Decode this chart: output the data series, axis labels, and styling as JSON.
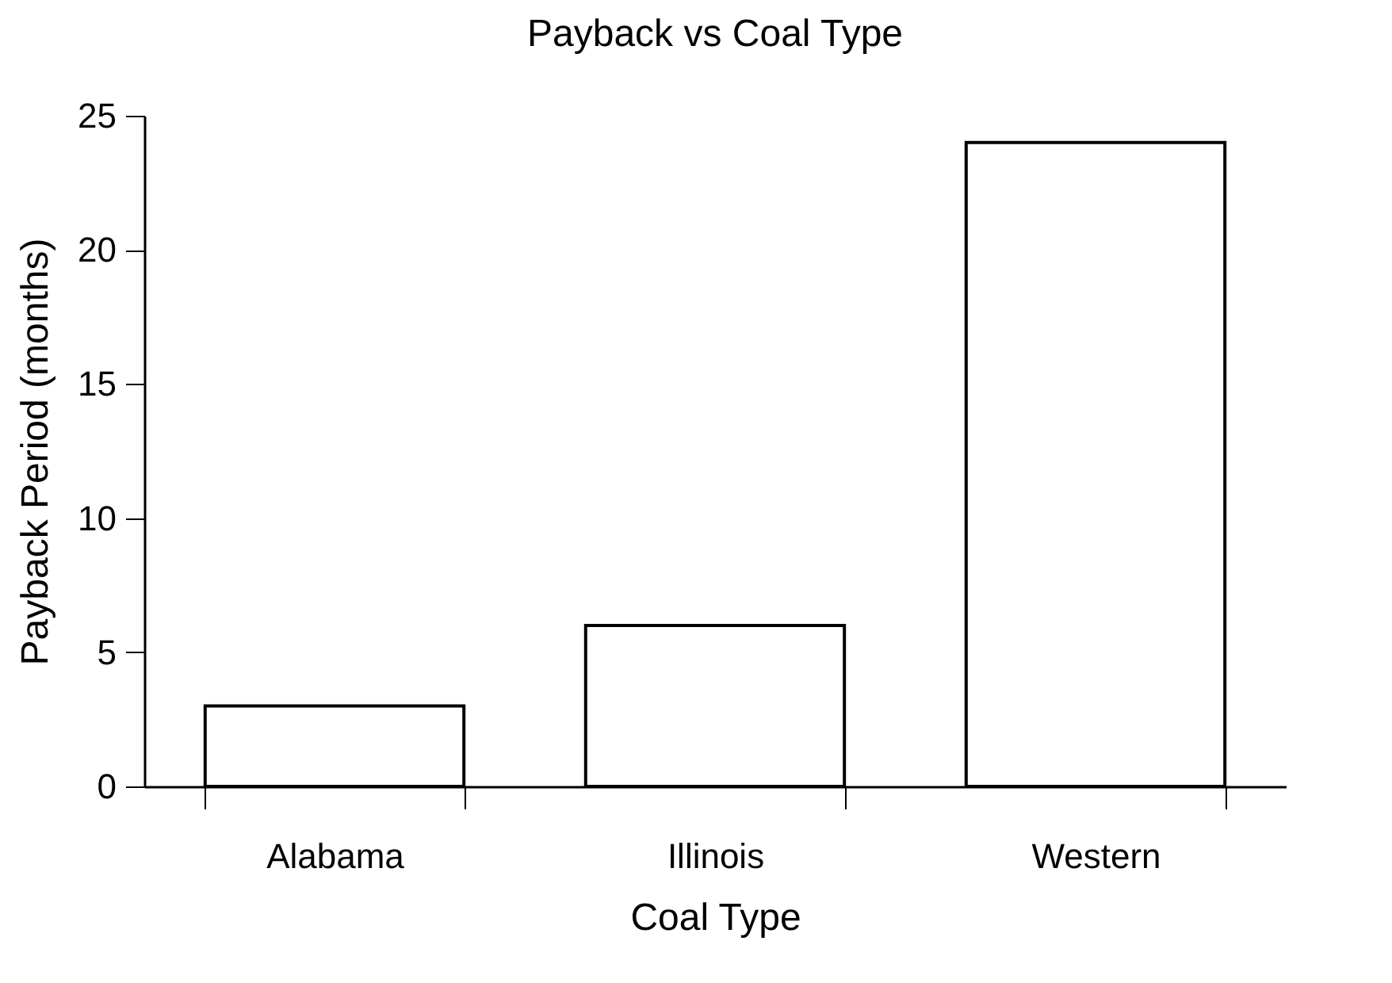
{
  "chart_data": {
    "type": "bar",
    "title": "Payback vs Coal Type",
    "xlabel": "Coal Type",
    "ylabel": "Payback Period (months)",
    "categories": [
      "Alabama",
      "Illinois",
      "Western"
    ],
    "values": [
      3,
      6,
      24
    ],
    "color": "#ffffff",
    "ylim": [
      0,
      25
    ],
    "yticks": [
      0,
      5,
      10,
      15,
      20,
      25
    ],
    "grid": false
  }
}
